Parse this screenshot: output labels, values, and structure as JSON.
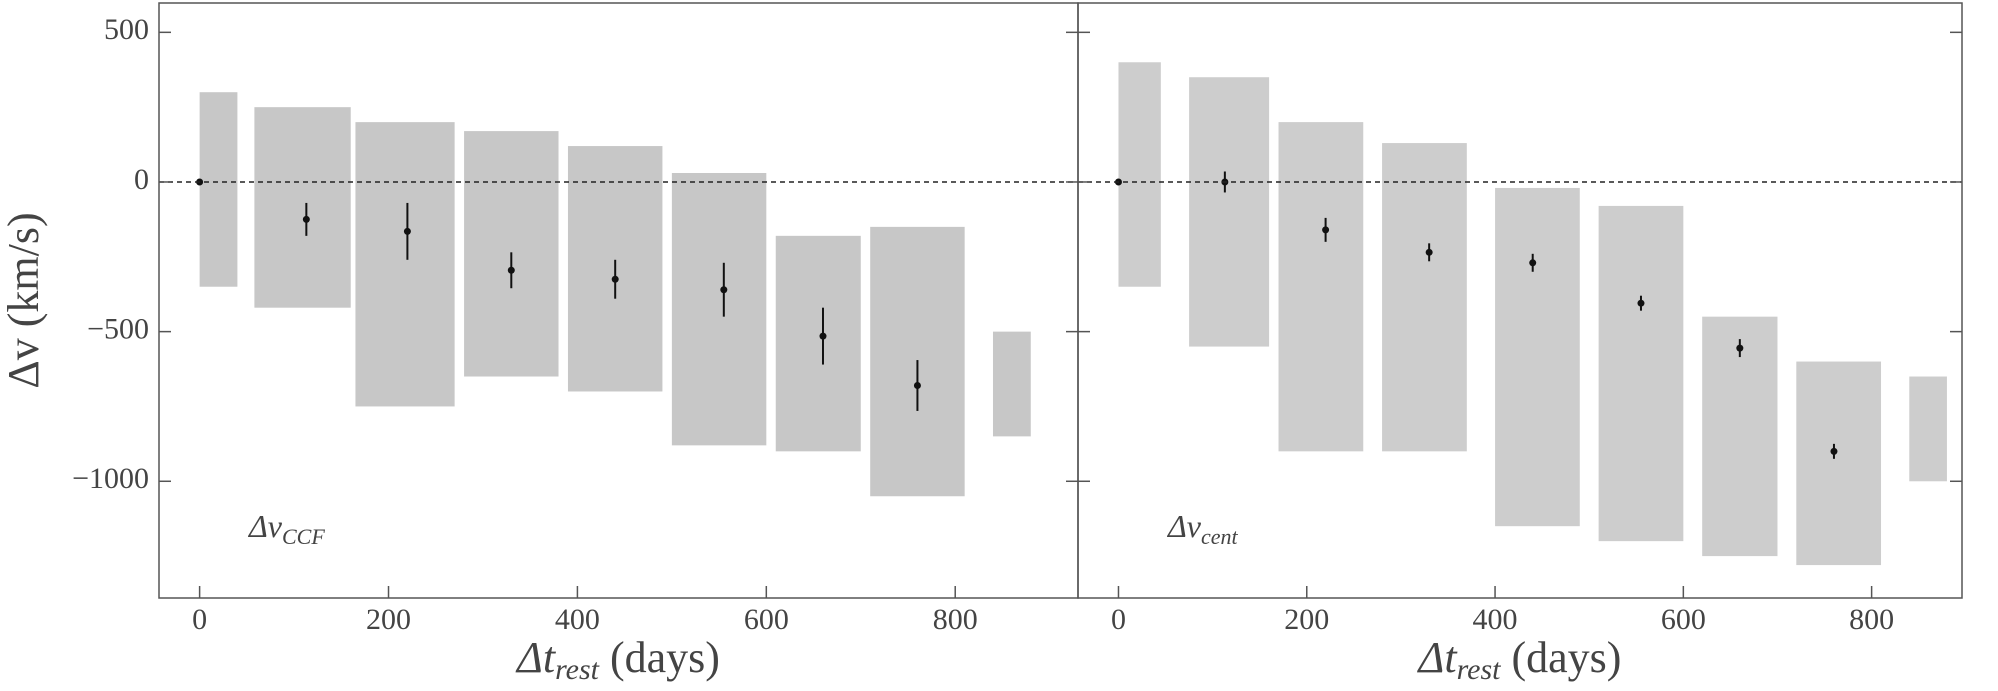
{
  "chart_data": [
    {
      "type": "errorbar",
      "annotation": "Δv",
      "annotation_sub": "CCF",
      "xlabel": "Δt",
      "xlabel_sub": "rest",
      "xlabel_suffix": " (days)",
      "ylabel": "Δv (km/s)",
      "xlim": [
        -43,
        930
      ],
      "ylim": [
        -1390,
        598
      ],
      "xticks": [
        0,
        200,
        400,
        600,
        800
      ],
      "yticks": [
        500,
        0,
        {
          "value": -500,
          "label": "−500"
        },
        {
          "value": -1000,
          "label": "−1000"
        }
      ],
      "ytick_labels": true,
      "hline": 0,
      "cloud_color": "#bdbdbd",
      "point_color": "#111111",
      "clusters": [
        {
          "x": [
            0,
            40
          ],
          "y": [
            -350,
            300
          ]
        },
        {
          "x": [
            58,
            160
          ],
          "y": [
            -420,
            250
          ]
        },
        {
          "x": [
            165,
            270
          ],
          "y": [
            -750,
            200
          ]
        },
        {
          "x": [
            280,
            380
          ],
          "y": [
            -650,
            170
          ]
        },
        {
          "x": [
            390,
            490
          ],
          "y": [
            -700,
            120
          ]
        },
        {
          "x": [
            500,
            600
          ],
          "y": [
            -880,
            30
          ]
        },
        {
          "x": [
            610,
            700
          ],
          "y": [
            -900,
            -180
          ]
        },
        {
          "x": [
            710,
            810
          ],
          "y": [
            -1050,
            -150
          ]
        },
        {
          "x": [
            840,
            880
          ],
          "y": [
            -850,
            -500
          ]
        }
      ],
      "x": [
        0,
        113,
        220,
        330,
        440,
        555,
        660,
        760
      ],
      "values": [
        0,
        -125,
        -165,
        -295,
        -325,
        -360,
        -515,
        -680
      ],
      "errors": [
        0,
        55,
        95,
        60,
        65,
        90,
        95,
        85
      ]
    },
    {
      "type": "errorbar",
      "annotation": "Δv",
      "annotation_sub": "cent",
      "xlabel": "Δt",
      "xlabel_sub": "rest",
      "xlabel_suffix": " (days)",
      "xlim": [
        -43,
        896
      ],
      "ylim": [
        -1390,
        598
      ],
      "xticks": [
        0,
        200,
        400,
        600,
        800
      ],
      "yticks": [
        500,
        0,
        -500,
        -1000
      ],
      "ytick_labels": false,
      "hline": 0,
      "cloud_color": "#c4c4c4",
      "point_color": "#111111",
      "clusters": [
        {
          "x": [
            0,
            45
          ],
          "y": [
            -350,
            400
          ]
        },
        {
          "x": [
            75,
            160
          ],
          "y": [
            -550,
            350
          ]
        },
        {
          "x": [
            170,
            260
          ],
          "y": [
            -900,
            200
          ]
        },
        {
          "x": [
            280,
            370
          ],
          "y": [
            -900,
            130
          ]
        },
        {
          "x": [
            400,
            490
          ],
          "y": [
            -1150,
            -20
          ]
        },
        {
          "x": [
            510,
            600
          ],
          "y": [
            -1200,
            -80
          ]
        },
        {
          "x": [
            620,
            700
          ],
          "y": [
            -1250,
            -450
          ]
        },
        {
          "x": [
            720,
            810
          ],
          "y": [
            -1280,
            -600
          ]
        },
        {
          "x": [
            840,
            880
          ],
          "y": [
            -1000,
            -650
          ]
        }
      ],
      "x": [
        0,
        113,
        220,
        330,
        440,
        555,
        660,
        760
      ],
      "values": [
        0,
        0,
        -160,
        -235,
        -270,
        -405,
        -555,
        -900
      ],
      "errors": [
        0,
        35,
        40,
        30,
        30,
        25,
        30,
        25
      ]
    }
  ]
}
